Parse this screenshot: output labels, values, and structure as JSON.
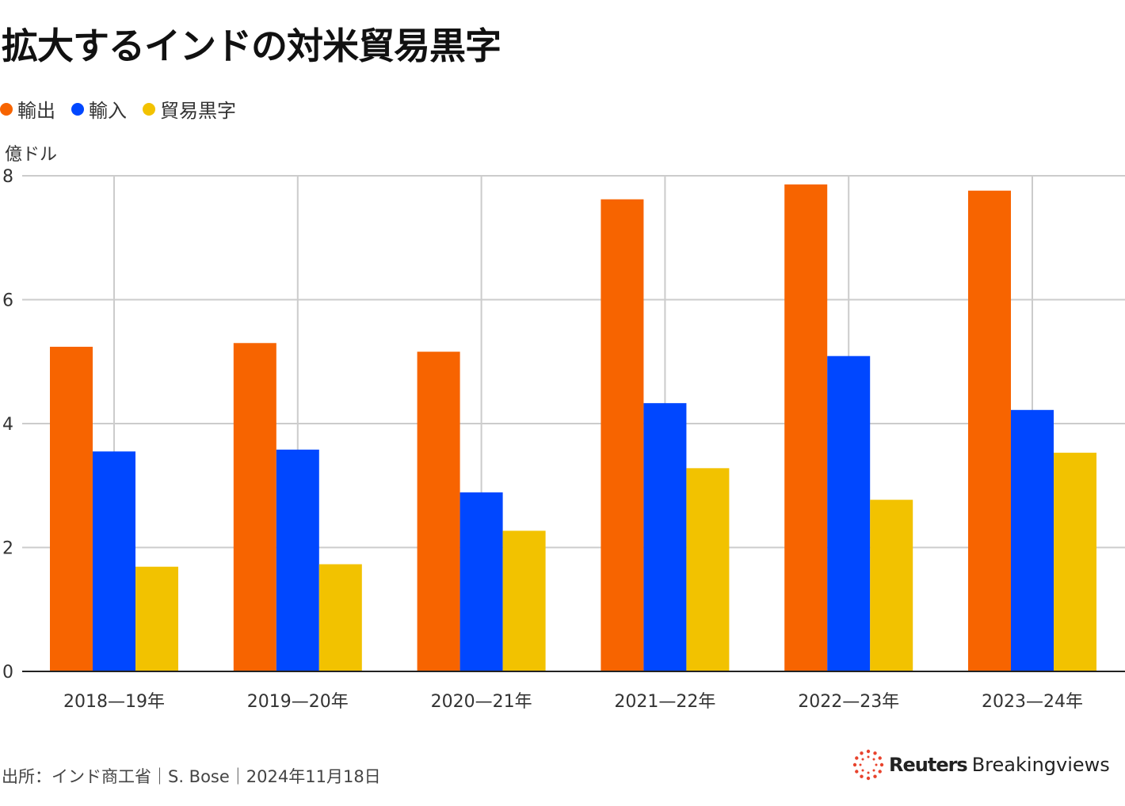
{
  "title": "拡大するインドの対米貿易黒字",
  "unit_label": "億ドル",
  "footer": "出所：インド商工省｜S. Bose｜2024年11月18日",
  "logo": {
    "reuters": "Reuters",
    "breakingviews": "Breakingviews"
  },
  "chart_data": {
    "type": "bar",
    "title": "拡大するインドの対米貿易黒字",
    "ylabel": "億ドル",
    "ylim": [
      0,
      8
    ],
    "yticks": [
      0,
      2,
      4,
      6,
      8
    ],
    "grid": true,
    "legend_position": "top-left",
    "categories": [
      "2018—19年",
      "2019—20年",
      "2020—21年",
      "2021—22年",
      "2022—23年",
      "2023—24年"
    ],
    "series": [
      {
        "name": "輸出",
        "color": "#F76400",
        "values": [
          5.24,
          5.3,
          5.16,
          7.62,
          7.86,
          7.76
        ]
      },
      {
        "name": "輸入",
        "color": "#0047FF",
        "values": [
          3.55,
          3.58,
          2.89,
          4.33,
          5.09,
          4.22
        ]
      },
      {
        "name": "貿易黒字",
        "color": "#F2C200",
        "values": [
          1.69,
          1.73,
          2.27,
          3.28,
          2.77,
          3.53
        ]
      }
    ]
  }
}
